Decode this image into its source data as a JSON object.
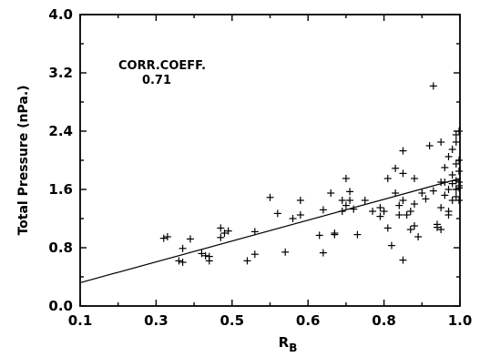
{
  "chart_data": {
    "type": "scatter",
    "xlabel": "R",
    "xlabel_subscript": "B",
    "ylabel": "Total Pressure (nPa.)",
    "annotation": {
      "label": "CORR.COEFF.",
      "value": "0.71"
    },
    "x_ticks": [
      "0.1",
      "0.3",
      "0.5",
      "0.6",
      "0.8",
      "1.0"
    ],
    "y_ticks": [
      "0.0",
      "0.8",
      "1.6",
      "2.4",
      "3.2",
      "4.0"
    ],
    "y_ticks_values": [
      0.0,
      0.8,
      1.6,
      2.4,
      3.2,
      4.0
    ],
    "ylim": [
      0,
      4
    ],
    "grid": false,
    "fit_line": {
      "x": [
        "0.1",
        "1.0"
      ],
      "y": [
        0.32,
        1.75
      ]
    },
    "points": [
      {
        "x": "0.32",
        "y": 0.93
      },
      {
        "x": "0.33",
        "y": 0.95
      },
      {
        "x": "0.36",
        "y": 0.62
      },
      {
        "x": "0.37",
        "y": 0.79
      },
      {
        "x": "0.37",
        "y": 0.6
      },
      {
        "x": "0.39",
        "y": 0.92
      },
      {
        "x": "0.42",
        "y": 0.72
      },
      {
        "x": "0.43",
        "y": 0.69
      },
      {
        "x": "0.44",
        "y": 0.68
      },
      {
        "x": "0.44",
        "y": 0.62
      },
      {
        "x": "0.47",
        "y": 1.07
      },
      {
        "x": "0.47",
        "y": 0.94
      },
      {
        "x": "0.48",
        "y": 1.0
      },
      {
        "x": "0.49",
        "y": 1.03
      },
      {
        "x": "0.52",
        "y": 0.62
      },
      {
        "x": "0.53",
        "y": 0.71
      },
      {
        "x": "0.53",
        "y": 1.02
      },
      {
        "x": "0.55",
        "y": 1.49
      },
      {
        "x": "0.56",
        "y": 1.27
      },
      {
        "x": "0.57",
        "y": 0.74
      },
      {
        "x": "0.58",
        "y": 1.2
      },
      {
        "x": "0.59",
        "y": 1.45
      },
      {
        "x": "0.59",
        "y": 1.25
      },
      {
        "x": "0.63",
        "y": 0.97
      },
      {
        "x": "0.64",
        "y": 1.32
      },
      {
        "x": "0.64",
        "y": 0.73
      },
      {
        "x": "0.66",
        "y": 1.55
      },
      {
        "x": "0.67",
        "y": 0.98
      },
      {
        "x": "0.67",
        "y": 1.0
      },
      {
        "x": "0.69",
        "y": 1.45
      },
      {
        "x": "0.69",
        "y": 1.3
      },
      {
        "x": "0.7",
        "y": 1.75
      },
      {
        "x": "0.7",
        "y": 1.38
      },
      {
        "x": "0.71",
        "y": 1.57
      },
      {
        "x": "0.71",
        "y": 1.45
      },
      {
        "x": "0.72",
        "y": 1.33
      },
      {
        "x": "0.73",
        "y": 0.98
      },
      {
        "x": "0.75",
        "y": 1.45
      },
      {
        "x": "0.77",
        "y": 1.3
      },
      {
        "x": "0.79",
        "y": 1.35
      },
      {
        "x": "0.79",
        "y": 1.23
      },
      {
        "x": "0.8",
        "y": 1.3
      },
      {
        "x": "0.81",
        "y": 1.75
      },
      {
        "x": "0.81",
        "y": 1.07
      },
      {
        "x": "0.82",
        "y": 0.83
      },
      {
        "x": "0.83",
        "y": 1.89
      },
      {
        "x": "0.83",
        "y": 1.55
      },
      {
        "x": "0.84",
        "y": 1.38
      },
      {
        "x": "0.84",
        "y": 1.25
      },
      {
        "x": "0.85",
        "y": 2.13
      },
      {
        "x": "0.85",
        "y": 1.82
      },
      {
        "x": "0.85",
        "y": 1.45
      },
      {
        "x": "0.85",
        "y": 0.63
      },
      {
        "x": "0.86",
        "y": 1.25
      },
      {
        "x": "0.87",
        "y": 1.3
      },
      {
        "x": "0.87",
        "y": 1.05
      },
      {
        "x": "0.88",
        "y": 1.75
      },
      {
        "x": "0.88",
        "y": 1.4
      },
      {
        "x": "0.88",
        "y": 1.1
      },
      {
        "x": "0.89",
        "y": 0.95
      },
      {
        "x": "0.9",
        "y": 1.55
      },
      {
        "x": "0.91",
        "y": 1.47
      },
      {
        "x": "0.92",
        "y": 2.2
      },
      {
        "x": "0.93",
        "y": 3.02
      },
      {
        "x": "0.93",
        "y": 1.58
      },
      {
        "x": "0.94",
        "y": 1.12
      },
      {
        "x": "0.94",
        "y": 1.08
      },
      {
        "x": "0.95",
        "y": 2.25
      },
      {
        "x": "0.95",
        "y": 1.7
      },
      {
        "x": "0.95",
        "y": 1.35
      },
      {
        "x": "0.95",
        "y": 1.05
      },
      {
        "x": "0.96",
        "y": 1.9
      },
      {
        "x": "0.96",
        "y": 1.7
      },
      {
        "x": "0.96",
        "y": 1.52
      },
      {
        "x": "0.97",
        "y": 1.6
      },
      {
        "x": "0.97",
        "y": 1.3
      },
      {
        "x": "0.97",
        "y": 1.25
      },
      {
        "x": "0.97",
        "y": 2.05
      },
      {
        "x": "0.98",
        "y": 1.8
      },
      {
        "x": "0.98",
        "y": 1.68
      },
      {
        "x": "0.98",
        "y": 1.45
      },
      {
        "x": "0.98",
        "y": 2.15
      },
      {
        "x": "0.99",
        "y": 2.25
      },
      {
        "x": "0.99",
        "y": 1.95
      },
      {
        "x": "0.99",
        "y": 1.72
      },
      {
        "x": "0.99",
        "y": 1.6
      },
      {
        "x": "0.99",
        "y": 1.5
      },
      {
        "x": "0.99",
        "y": 2.35
      },
      {
        "x": "1.0",
        "y": 2.4
      },
      {
        "x": "1.0",
        "y": 1.85
      },
      {
        "x": "1.0",
        "y": 1.7
      },
      {
        "x": "1.0",
        "y": 1.62
      },
      {
        "x": "1.0",
        "y": 1.45
      },
      {
        "x": "1.0",
        "y": 2.0
      },
      {
        "x": "1.0",
        "y": 1.65
      }
    ]
  }
}
